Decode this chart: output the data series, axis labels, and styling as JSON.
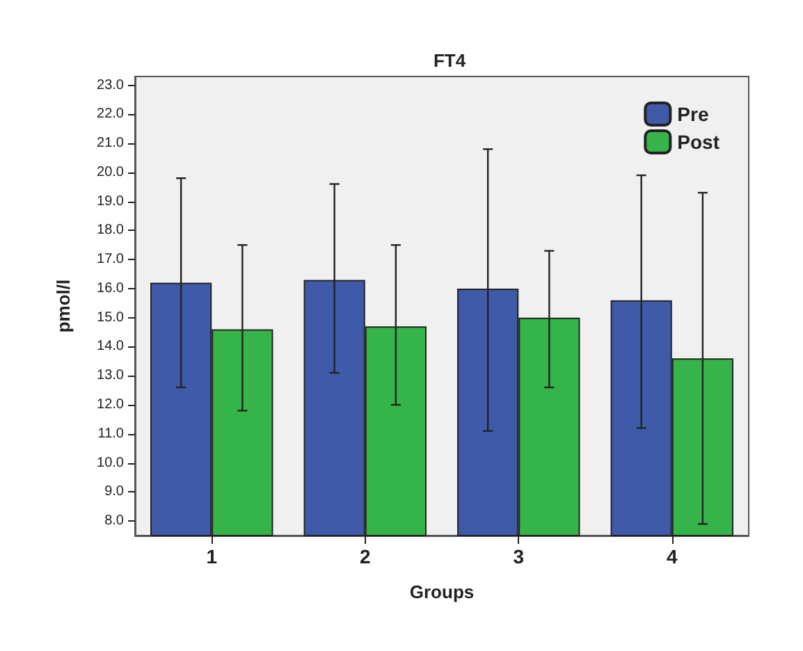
{
  "chart_data": {
    "type": "bar",
    "title": "FT4",
    "xlabel": "Groups",
    "ylabel": "pmol/l",
    "categories": [
      "1",
      "2",
      "3",
      "4"
    ],
    "series": [
      {
        "name": "Pre",
        "color": "#3f5aa8",
        "values": [
          16.2,
          16.3,
          16.0,
          15.6
        ],
        "errors": [
          [
            12.6,
            19.8
          ],
          [
            13.1,
            19.6
          ],
          [
            11.1,
            20.8
          ],
          [
            11.2,
            19.9
          ]
        ]
      },
      {
        "name": "Post",
        "color": "#35b549",
        "values": [
          14.6,
          14.7,
          15.0,
          13.6
        ],
        "errors": [
          [
            11.8,
            17.5
          ],
          [
            12.0,
            17.5
          ],
          [
            12.6,
            17.3
          ],
          [
            7.9,
            19.3
          ]
        ]
      }
    ],
    "ylim": [
      7.5,
      23.3
    ],
    "yticks": [
      {
        "value": 8,
        "label": "8.0"
      },
      {
        "value": 9,
        "label": "9.0"
      },
      {
        "value": 10,
        "label": "10.0"
      },
      {
        "value": 11,
        "label": "11.0"
      },
      {
        "value": 12,
        "label": "12.0"
      },
      {
        "value": 13,
        "label": "13.0"
      },
      {
        "value": 14,
        "label": "14.0"
      },
      {
        "value": 15,
        "label": "15.0"
      },
      {
        "value": 16,
        "label": "16.0"
      },
      {
        "value": 17,
        "label": "17.0"
      },
      {
        "value": 18,
        "label": "18.0"
      },
      {
        "value": 19,
        "label": "19.0"
      },
      {
        "value": 20,
        "label": "20.0"
      },
      {
        "value": 21,
        "label": "21.0"
      },
      {
        "value": 22,
        "label": "22.0"
      },
      {
        "value": 23,
        "label": "23.0"
      }
    ],
    "grid": false,
    "legend": "top right"
  }
}
